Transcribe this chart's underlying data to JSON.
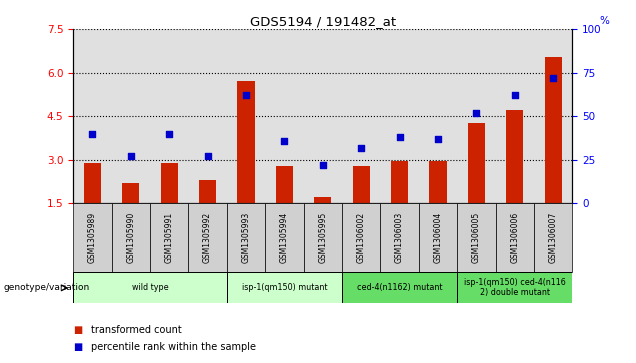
{
  "title": "GDS5194 / 191482_at",
  "samples": [
    "GSM1305989",
    "GSM1305990",
    "GSM1305991",
    "GSM1305992",
    "GSM1305993",
    "GSM1305994",
    "GSM1305995",
    "GSM1306002",
    "GSM1306003",
    "GSM1306004",
    "GSM1306005",
    "GSM1306006",
    "GSM1306007"
  ],
  "bar_values": [
    2.9,
    2.2,
    2.9,
    2.3,
    5.7,
    2.8,
    1.7,
    2.8,
    2.95,
    2.95,
    4.25,
    4.7,
    6.55
  ],
  "dot_values": [
    40,
    27,
    40,
    27,
    62,
    36,
    22,
    32,
    38,
    37,
    52,
    62,
    72
  ],
  "bar_color": "#cc2200",
  "dot_color": "#0000cc",
  "ylim_left": [
    1.5,
    7.5
  ],
  "ylim_right": [
    0,
    100
  ],
  "yticks_left": [
    1.5,
    3.0,
    4.5,
    6.0,
    7.5
  ],
  "yticks_right": [
    0,
    25,
    50,
    75,
    100
  ],
  "groups": [
    {
      "label": "wild type",
      "start": 0,
      "end": 3,
      "color": "#ccffcc"
    },
    {
      "label": "isp-1(qm150) mutant",
      "start": 4,
      "end": 6,
      "color": "#ccffcc"
    },
    {
      "label": "ced-4(n1162) mutant",
      "start": 7,
      "end": 9,
      "color": "#66dd66"
    },
    {
      "label": "isp-1(qm150) ced-4(n116\n2) double mutant",
      "start": 10,
      "end": 12,
      "color": "#66dd66"
    }
  ],
  "legend_bar_label": "transformed count",
  "legend_dot_label": "percentile rank within the sample",
  "genotype_label": "genotype/variation",
  "plot_bg_color": "#e0e0e0",
  "label_box_color": "#d0d0d0"
}
